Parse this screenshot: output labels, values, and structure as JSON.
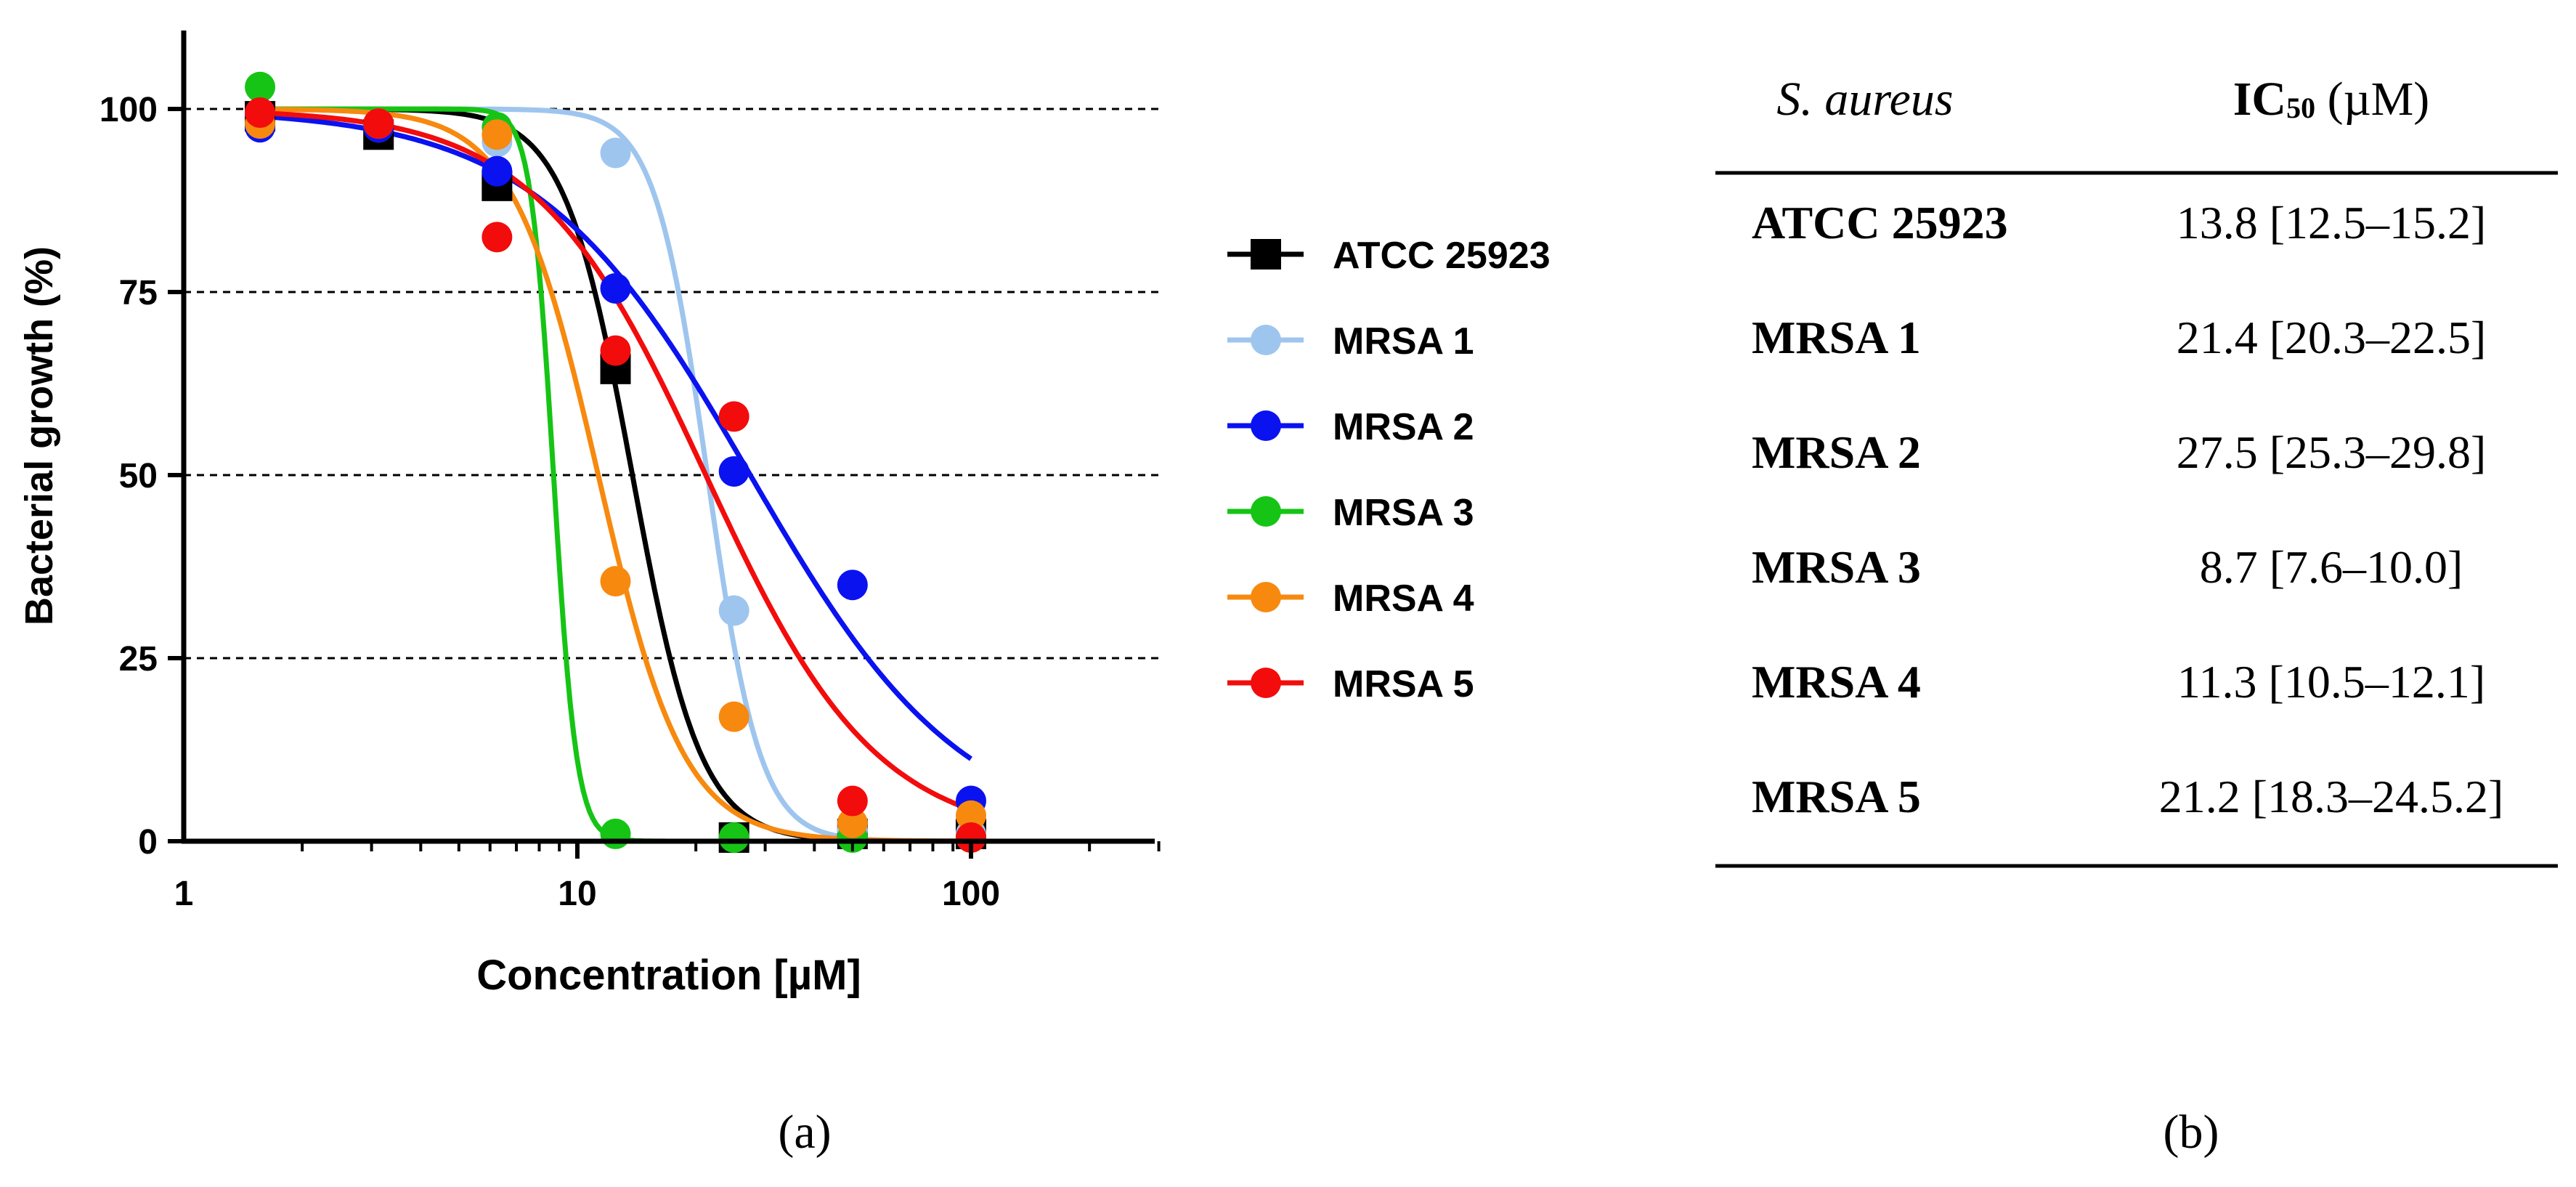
{
  "chart_data": {
    "type": "scatter",
    "xscale": "log",
    "xlabel": "Concentration [µM]",
    "ylabel": "Bacterial growth (%)",
    "xlim": [
      1,
      300
    ],
    "ylim": [
      0,
      110
    ],
    "xticks": [
      1,
      10,
      100
    ],
    "xtick_labels": [
      "1",
      "10",
      "100"
    ],
    "yticks": [
      0,
      25,
      50,
      75,
      100
    ],
    "ytick_labels": [
      "0",
      "25",
      "50",
      "75",
      "100"
    ],
    "grid_y": [
      25,
      50,
      75,
      100
    ],
    "legend_position": "right",
    "panel_label": "(a)",
    "series": [
      {
        "name": "ATCC 25923",
        "color": "#000000",
        "marker": "square",
        "x": [
          1.5625,
          3.125,
          6.25,
          12.5,
          25,
          50,
          100
        ],
        "y": [
          99,
          96.5,
          89.5,
          64.5,
          0.5,
          1,
          1
        ],
        "fit": {
          "top": 100,
          "bottom": 0,
          "ic50": 13.8,
          "hill": 5.0
        }
      },
      {
        "name": "MRSA 1",
        "color": "#9ec5ee",
        "marker": "circle",
        "x": [
          1.5625,
          3.125,
          6.25,
          12.5,
          25,
          50,
          100
        ],
        "y": [
          99.5,
          97.5,
          95.5,
          94,
          31.5,
          1.5,
          1
        ],
        "fit": {
          "top": 100,
          "bottom": 0,
          "ic50": 21.4,
          "hill": 6.5
        }
      },
      {
        "name": "MRSA 2",
        "color": "#0a12f0",
        "marker": "circle",
        "x": [
          1.5625,
          3.125,
          6.25,
          12.5,
          25,
          50,
          100
        ],
        "y": [
          97.5,
          97.5,
          91.5,
          75.5,
          50.5,
          35,
          5.5
        ],
        "fit": {
          "top": 100,
          "bottom": 0,
          "ic50": 27.5,
          "hill": 1.6
        }
      },
      {
        "name": "MRSA 3",
        "color": "#16c416",
        "marker": "circle",
        "x": [
          1.5625,
          3.125,
          6.25,
          12.5,
          25,
          50,
          100
        ],
        "y": [
          103,
          98,
          97.5,
          1,
          0.5,
          0.5,
          0.5
        ],
        "fit": {
          "top": 100,
          "bottom": 0,
          "ic50": 8.7,
          "hill": 15
        }
      },
      {
        "name": "MRSA 4",
        "color": "#f7890f",
        "marker": "circle",
        "x": [
          1.5625,
          3.125,
          6.25,
          12.5,
          25,
          50,
          100
        ],
        "y": [
          98,
          98,
          96.5,
          35.5,
          17,
          2.5,
          3.5
        ],
        "fit": {
          "top": 100,
          "bottom": 0,
          "ic50": 11.3,
          "hill": 4.0
        }
      },
      {
        "name": "MRSA 5",
        "color": "#f20c0c",
        "marker": "circle",
        "x": [
          1.5625,
          3.125,
          6.25,
          12.5,
          25,
          50,
          100
        ],
        "y": [
          99.5,
          98,
          82.5,
          67,
          58,
          5.5,
          0.5
        ],
        "fit": {
          "top": 100,
          "bottom": 0,
          "ic50": 21.2,
          "hill": 2.0
        }
      }
    ]
  },
  "table": {
    "panel_label": "(b)",
    "header": {
      "strain": "S. aureus",
      "ic_prefix": "IC",
      "ic_sub": "50",
      "ic_unit": " (µM)"
    },
    "rows": [
      {
        "strain": "ATCC 25923",
        "ic50": "13.8 [12.5–15.2]"
      },
      {
        "strain": "MRSA 1",
        "ic50": "21.4 [20.3–22.5]"
      },
      {
        "strain": "MRSA 2",
        "ic50": "27.5 [25.3–29.8]"
      },
      {
        "strain": "MRSA 3",
        "ic50": "8.7 [7.6–10.0]"
      },
      {
        "strain": "MRSA 4",
        "ic50": "11.3 [10.5–12.1]"
      },
      {
        "strain": "MRSA 5",
        "ic50": "21.2 [18.3–24.5.2]"
      }
    ]
  }
}
